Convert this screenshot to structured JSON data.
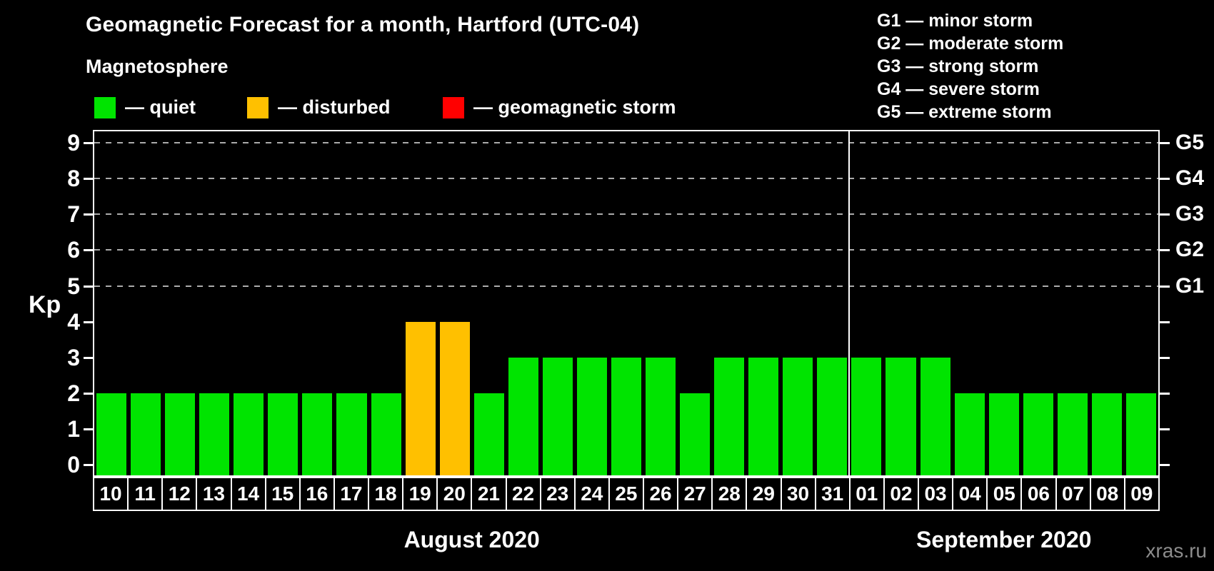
{
  "title": "Geomagnetic Forecast for a month, Hartford (UTC-04)",
  "subtitle": "Magnetosphere",
  "legend": {
    "items": [
      {
        "label": "— quiet",
        "state": "quiet"
      },
      {
        "label": "— disturbed",
        "state": "disturbed"
      },
      {
        "label": "— geomagnetic storm",
        "state": "storm"
      }
    ]
  },
  "g_legend": {
    "lines": [
      "G1 — minor storm",
      "G2 — moderate storm",
      "G3 — strong storm",
      "G4 — severe storm",
      "G5 — extreme storm"
    ]
  },
  "watermark": "xras.ru",
  "chart_data": {
    "type": "bar",
    "title": "Geomagnetic Forecast for a month, Hartford (UTC-04)",
    "ylabel": "Kp",
    "ylim": [
      0,
      9
    ],
    "yticks": [
      0,
      1,
      2,
      3,
      4,
      5,
      6,
      7,
      8,
      9
    ],
    "grid_levels": [
      5,
      6,
      7,
      8,
      9
    ],
    "right_axis_labels": [
      {
        "kp": 5,
        "label": "G1"
      },
      {
        "kp": 6,
        "label": "G2"
      },
      {
        "kp": 7,
        "label": "G3"
      },
      {
        "kp": 8,
        "label": "G4"
      },
      {
        "kp": 9,
        "label": "G5"
      }
    ],
    "categories": [
      "10",
      "11",
      "12",
      "13",
      "14",
      "15",
      "16",
      "17",
      "18",
      "19",
      "20",
      "21",
      "22",
      "23",
      "24",
      "25",
      "26",
      "27",
      "28",
      "29",
      "30",
      "31",
      "01",
      "02",
      "03",
      "04",
      "05",
      "06",
      "07",
      "08",
      "09"
    ],
    "values": [
      2,
      2,
      2,
      2,
      2,
      2,
      2,
      2,
      2,
      4,
      4,
      2,
      3,
      3,
      3,
      3,
      3,
      2,
      3,
      3,
      3,
      3,
      3,
      3,
      3,
      2,
      2,
      2,
      2,
      2,
      2
    ],
    "states": [
      "quiet",
      "quiet",
      "quiet",
      "quiet",
      "quiet",
      "quiet",
      "quiet",
      "quiet",
      "quiet",
      "disturbed",
      "disturbed",
      "quiet",
      "quiet",
      "quiet",
      "quiet",
      "quiet",
      "quiet",
      "quiet",
      "quiet",
      "quiet",
      "quiet",
      "quiet",
      "quiet",
      "quiet",
      "quiet",
      "quiet",
      "quiet",
      "quiet",
      "quiet",
      "quiet",
      "quiet"
    ],
    "months": [
      {
        "label": "August 2020",
        "count": 22
      },
      {
        "label": "September 2020",
        "count": 9
      }
    ],
    "palette": {
      "quiet": "#00e400",
      "disturbed": "#ffc000",
      "storm": "#ff0000"
    },
    "grid": true,
    "legend_position": "top"
  }
}
